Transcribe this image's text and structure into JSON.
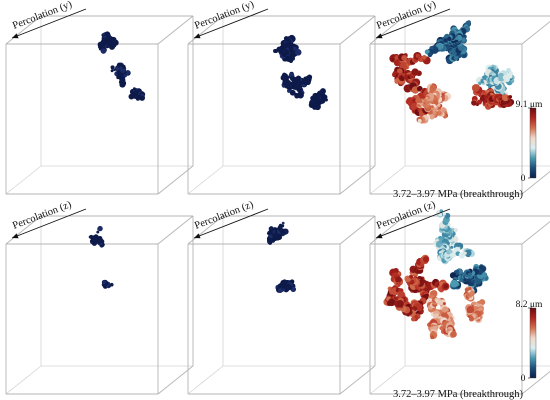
{
  "colors": {
    "cluster_dark": "#0d1a4a",
    "cube_edge": "#b4b4b4",
    "cube_hidden": "#d4d4d4",
    "colormap": [
      "#0b1e4c",
      "#1d4f7a",
      "#4c9bb2",
      "#d9eef0",
      "#f1d8c9",
      "#d3704d",
      "#b0261f",
      "#6b0c10"
    ]
  },
  "rows": [
    {
      "id": "y",
      "percolation_label": "Percolation (y)",
      "panels": [
        {
          "id": "y-1",
          "cluster": "small-dark"
        },
        {
          "id": "y-2",
          "cluster": "medium-dark"
        },
        {
          "id": "y-3",
          "cluster": "breakthrough-colored",
          "caption": "3.72–3.97 MPa (breakthrough)",
          "colorbar": {
            "max_label": "9.1 μm",
            "min_label": "0"
          }
        }
      ]
    },
    {
      "id": "z",
      "percolation_label": "Percolation (z)",
      "panels": [
        {
          "id": "z-1",
          "cluster": "small-dark"
        },
        {
          "id": "z-2",
          "cluster": "medium-dark"
        },
        {
          "id": "z-3",
          "cluster": "breakthrough-colored",
          "caption": "3.72–3.97 MPa (breakthrough)",
          "colorbar": {
            "max_label": "8.2 μm",
            "min_label": "0"
          }
        }
      ]
    }
  ]
}
